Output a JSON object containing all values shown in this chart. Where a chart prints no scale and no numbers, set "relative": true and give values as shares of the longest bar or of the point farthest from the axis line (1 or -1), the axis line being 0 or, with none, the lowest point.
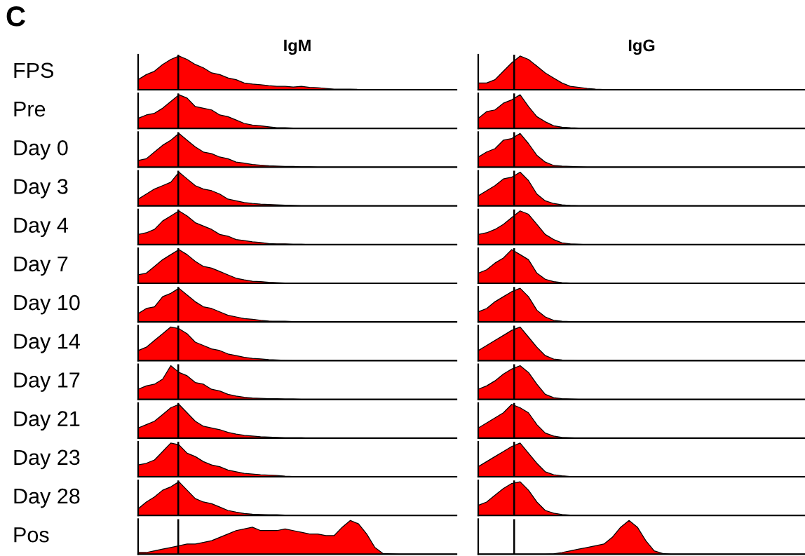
{
  "chart_data": [
    {
      "type": "area",
      "relative": true,
      "title": "IgM",
      "ylabel": "FPS",
      "annotations": [
        "C"
      ],
      "color": "#ff0000",
      "categories": [
        null,
        null,
        null,
        null,
        null,
        null,
        null,
        null,
        null,
        null,
        null,
        null,
        null,
        null,
        null,
        null,
        null,
        null,
        null,
        null,
        null,
        null,
        null,
        null,
        null,
        null,
        null,
        null,
        null,
        null,
        null,
        null,
        null,
        null,
        null,
        null,
        null,
        null,
        null,
        null
      ],
      "values": [
        0.3,
        0.45,
        0.55,
        0.75,
        0.9,
        1,
        0.9,
        0.75,
        0.65,
        0.5,
        0.45,
        0.35,
        0.3,
        0.2,
        0.17,
        0.15,
        0.12,
        0.1,
        0.1,
        0.08,
        0.1,
        0.07,
        0.06,
        0.04,
        0.02,
        0.02,
        0.02,
        0.01,
        0,
        0,
        0,
        0,
        0,
        0,
        0,
        0,
        0,
        0,
        0,
        0
      ]
    },
    {
      "type": "area",
      "relative": true,
      "title": "IgG",
      "color": "#ff0000",
      "categories": [
        null,
        null,
        null,
        null,
        null,
        null,
        null,
        null,
        null,
        null,
        null,
        null,
        null,
        null,
        null,
        null,
        null,
        null,
        null,
        null,
        null,
        null,
        null,
        null,
        null,
        null,
        null,
        null,
        null,
        null,
        null,
        null,
        null,
        null,
        null,
        null,
        null,
        null,
        null,
        null
      ],
      "values": [
        0.2,
        0.2,
        0.3,
        0.55,
        0.8,
        1,
        0.9,
        0.7,
        0.5,
        0.35,
        0.2,
        0.1,
        0.07,
        0.04,
        0.02,
        0.01,
        0,
        0,
        0,
        0,
        0,
        0,
        0,
        0,
        0,
        0,
        0,
        0,
        0,
        0,
        0,
        0,
        0,
        0,
        0,
        0,
        0,
        0,
        0,
        0
      ]
    },
    {
      "type": "area",
      "relative": true,
      "ylabel": "Pre",
      "color": "#ff0000",
      "categories": [
        null,
        null,
        null,
        null,
        null,
        null,
        null,
        null,
        null,
        null,
        null,
        null,
        null,
        null,
        null,
        null,
        null,
        null,
        null,
        null,
        null,
        null,
        null,
        null,
        null,
        null,
        null,
        null,
        null,
        null,
        null,
        null,
        null,
        null,
        null,
        null,
        null,
        null,
        null,
        null
      ],
      "values": [
        0.3,
        0.4,
        0.45,
        0.6,
        0.8,
        1,
        0.9,
        0.65,
        0.6,
        0.55,
        0.4,
        0.35,
        0.25,
        0.15,
        0.1,
        0.08,
        0.05,
        0.02,
        0.02,
        0.01,
        0.01,
        0,
        0,
        0,
        0,
        0,
        0,
        0,
        0,
        0,
        0,
        0,
        0,
        0,
        0,
        0,
        0,
        0,
        0,
        0
      ]
    },
    {
      "type": "area",
      "relative": true,
      "color": "#ff0000",
      "categories": [
        null,
        null,
        null,
        null,
        null,
        null,
        null,
        null,
        null,
        null,
        null,
        null,
        null,
        null,
        null,
        null,
        null,
        null,
        null,
        null,
        null,
        null,
        null,
        null,
        null,
        null,
        null,
        null,
        null,
        null,
        null,
        null,
        null,
        null,
        null,
        null,
        null,
        null,
        null,
        null
      ],
      "values": [
        0.3,
        0.5,
        0.55,
        0.75,
        0.85,
        1,
        0.65,
        0.35,
        0.2,
        0.08,
        0.04,
        0.02,
        0.01,
        0,
        0,
        0,
        0,
        0,
        0,
        0,
        0,
        0,
        0,
        0,
        0,
        0,
        0,
        0,
        0,
        0,
        0,
        0,
        0,
        0,
        0,
        0,
        0,
        0,
        0,
        0
      ]
    },
    {
      "type": "area",
      "relative": true,
      "ylabel": "Day 0",
      "color": "#ff0000",
      "categories": [
        null,
        null,
        null,
        null,
        null,
        null,
        null,
        null,
        null,
        null,
        null,
        null,
        null,
        null,
        null,
        null,
        null,
        null,
        null,
        null,
        null,
        null,
        null,
        null,
        null,
        null,
        null,
        null,
        null,
        null,
        null,
        null,
        null,
        null,
        null,
        null,
        null,
        null,
        null,
        null
      ],
      "values": [
        0.2,
        0.25,
        0.45,
        0.65,
        0.8,
        1,
        0.8,
        0.6,
        0.45,
        0.4,
        0.3,
        0.25,
        0.15,
        0.12,
        0.08,
        0.06,
        0.04,
        0.03,
        0.02,
        0.02,
        0.01,
        0.01,
        0,
        0,
        0,
        0,
        0,
        0,
        0,
        0,
        0,
        0,
        0,
        0,
        0,
        0,
        0,
        0,
        0,
        0
      ]
    },
    {
      "type": "area",
      "relative": true,
      "color": "#ff0000",
      "categories": [
        null,
        null,
        null,
        null,
        null,
        null,
        null,
        null,
        null,
        null,
        null,
        null,
        null,
        null,
        null,
        null,
        null,
        null,
        null,
        null,
        null,
        null,
        null,
        null,
        null,
        null,
        null,
        null,
        null,
        null,
        null,
        null,
        null,
        null,
        null,
        null,
        null,
        null,
        null,
        null
      ],
      "values": [
        0.3,
        0.45,
        0.55,
        0.8,
        0.85,
        1,
        0.7,
        0.35,
        0.15,
        0.05,
        0.03,
        0.02,
        0.01,
        0,
        0,
        0,
        0,
        0,
        0,
        0,
        0,
        0,
        0,
        0,
        0,
        0,
        0,
        0,
        0,
        0,
        0,
        0,
        0,
        0,
        0,
        0,
        0,
        0,
        0,
        0
      ]
    },
    {
      "type": "area",
      "relative": true,
      "ylabel": "Day 3",
      "color": "#ff0000",
      "categories": [
        null,
        null,
        null,
        null,
        null,
        null,
        null,
        null,
        null,
        null,
        null,
        null,
        null,
        null,
        null,
        null,
        null,
        null,
        null,
        null,
        null,
        null,
        null,
        null,
        null,
        null,
        null,
        null,
        null,
        null,
        null,
        null,
        null,
        null,
        null,
        null,
        null,
        null,
        null,
        null
      ],
      "values": [
        0.2,
        0.35,
        0.5,
        0.6,
        0.7,
        1,
        0.8,
        0.6,
        0.5,
        0.45,
        0.35,
        0.2,
        0.15,
        0.1,
        0.07,
        0.05,
        0.04,
        0.03,
        0.02,
        0.01,
        0,
        0,
        0,
        0,
        0,
        0,
        0,
        0,
        0,
        0,
        0,
        0,
        0,
        0,
        0,
        0,
        0,
        0,
        0,
        0
      ]
    },
    {
      "type": "area",
      "relative": true,
      "color": "#ff0000",
      "categories": [
        null,
        null,
        null,
        null,
        null,
        null,
        null,
        null,
        null,
        null,
        null,
        null,
        null,
        null,
        null,
        null,
        null,
        null,
        null,
        null,
        null,
        null,
        null,
        null,
        null,
        null,
        null,
        null,
        null,
        null,
        null,
        null,
        null,
        null,
        null,
        null,
        null,
        null,
        null,
        null
      ],
      "values": [
        0.3,
        0.45,
        0.6,
        0.8,
        0.85,
        1,
        0.75,
        0.35,
        0.15,
        0.07,
        0.03,
        0.01,
        0,
        0,
        0,
        0,
        0,
        0,
        0,
        0,
        0,
        0,
        0,
        0,
        0,
        0,
        0,
        0,
        0,
        0,
        0,
        0,
        0,
        0,
        0,
        0,
        0,
        0,
        0,
        0
      ]
    },
    {
      "type": "area",
      "relative": true,
      "ylabel": "Day 4",
      "color": "#ff0000",
      "categories": [
        null,
        null,
        null,
        null,
        null,
        null,
        null,
        null,
        null,
        null,
        null,
        null,
        null,
        null,
        null,
        null,
        null,
        null,
        null,
        null,
        null,
        null,
        null,
        null,
        null,
        null,
        null,
        null,
        null,
        null,
        null,
        null,
        null,
        null,
        null,
        null,
        null,
        null,
        null,
        null
      ],
      "values": [
        0.3,
        0.35,
        0.45,
        0.7,
        0.85,
        1,
        0.85,
        0.65,
        0.55,
        0.45,
        0.3,
        0.25,
        0.15,
        0.12,
        0.08,
        0.06,
        0.03,
        0.02,
        0.02,
        0.01,
        0.01,
        0,
        0,
        0,
        0,
        0,
        0,
        0,
        0,
        0,
        0,
        0,
        0,
        0,
        0,
        0,
        0,
        0,
        0,
        0
      ]
    },
    {
      "type": "area",
      "relative": true,
      "color": "#ff0000",
      "categories": [
        null,
        null,
        null,
        null,
        null,
        null,
        null,
        null,
        null,
        null,
        null,
        null,
        null,
        null,
        null,
        null,
        null,
        null,
        null,
        null,
        null,
        null,
        null,
        null,
        null,
        null,
        null,
        null,
        null,
        null,
        null,
        null,
        null,
        null,
        null,
        null,
        null,
        null,
        null,
        null
      ],
      "values": [
        0.3,
        0.35,
        0.45,
        0.6,
        0.8,
        1,
        0.9,
        0.6,
        0.3,
        0.15,
        0.05,
        0.02,
        0.01,
        0,
        0,
        0,
        0,
        0,
        0,
        0,
        0,
        0,
        0,
        0,
        0,
        0,
        0,
        0,
        0,
        0,
        0,
        0,
        0,
        0,
        0,
        0,
        0,
        0,
        0,
        0
      ]
    },
    {
      "type": "area",
      "relative": true,
      "ylabel": "Day 7",
      "color": "#ff0000",
      "categories": [
        null,
        null,
        null,
        null,
        null,
        null,
        null,
        null,
        null,
        null,
        null,
        null,
        null,
        null,
        null,
        null,
        null,
        null,
        null,
        null,
        null,
        null,
        null,
        null,
        null,
        null,
        null,
        null,
        null,
        null,
        null,
        null,
        null,
        null,
        null,
        null,
        null,
        null,
        null,
        null
      ],
      "values": [
        0.25,
        0.3,
        0.5,
        0.7,
        0.85,
        1,
        0.85,
        0.65,
        0.5,
        0.45,
        0.35,
        0.25,
        0.15,
        0.1,
        0.06,
        0.05,
        0.03,
        0.02,
        0.01,
        0,
        0,
        0,
        0,
        0,
        0,
        0,
        0,
        0,
        0,
        0,
        0,
        0,
        0,
        0,
        0,
        0,
        0,
        0,
        0,
        0
      ]
    },
    {
      "type": "area",
      "relative": true,
      "color": "#ff0000",
      "categories": [
        null,
        null,
        null,
        null,
        null,
        null,
        null,
        null,
        null,
        null,
        null,
        null,
        null,
        null,
        null,
        null,
        null,
        null,
        null,
        null,
        null,
        null,
        null,
        null,
        null,
        null,
        null,
        null,
        null,
        null,
        null,
        null,
        null,
        null,
        null,
        null,
        null,
        null,
        null,
        null
      ],
      "values": [
        0.3,
        0.4,
        0.6,
        0.75,
        1,
        0.85,
        0.7,
        0.3,
        0.12,
        0.05,
        0.02,
        0.01,
        0,
        0,
        0,
        0,
        0,
        0,
        0,
        0,
        0,
        0,
        0,
        0,
        0,
        0,
        0,
        0,
        0,
        0,
        0,
        0,
        0,
        0,
        0,
        0,
        0,
        0,
        0,
        0
      ]
    },
    {
      "type": "area",
      "relative": true,
      "ylabel": "Day 10",
      "color": "#ff0000",
      "categories": [
        null,
        null,
        null,
        null,
        null,
        null,
        null,
        null,
        null,
        null,
        null,
        null,
        null,
        null,
        null,
        null,
        null,
        null,
        null,
        null,
        null,
        null,
        null,
        null,
        null,
        null,
        null,
        null,
        null,
        null,
        null,
        null,
        null,
        null,
        null,
        null,
        null,
        null,
        null,
        null
      ],
      "values": [
        0.25,
        0.4,
        0.45,
        0.75,
        0.85,
        1,
        0.8,
        0.6,
        0.45,
        0.4,
        0.3,
        0.2,
        0.15,
        0.1,
        0.08,
        0.05,
        0.03,
        0.02,
        0.02,
        0.01,
        0,
        0,
        0,
        0,
        0,
        0,
        0,
        0,
        0,
        0,
        0,
        0,
        0,
        0,
        0,
        0,
        0,
        0,
        0,
        0
      ]
    },
    {
      "type": "area",
      "relative": true,
      "color": "#ff0000",
      "categories": [
        null,
        null,
        null,
        null,
        null,
        null,
        null,
        null,
        null,
        null,
        null,
        null,
        null,
        null,
        null,
        null,
        null,
        null,
        null,
        null,
        null,
        null,
        null,
        null,
        null,
        null,
        null,
        null,
        null,
        null,
        null,
        null,
        null,
        null,
        null,
        null,
        null,
        null,
        null,
        null
      ],
      "values": [
        0.3,
        0.4,
        0.6,
        0.75,
        0.9,
        1,
        0.75,
        0.35,
        0.15,
        0.05,
        0.02,
        0.01,
        0,
        0,
        0,
        0,
        0,
        0,
        0,
        0,
        0,
        0,
        0,
        0,
        0,
        0,
        0,
        0,
        0,
        0,
        0,
        0,
        0,
        0,
        0,
        0,
        0,
        0,
        0,
        0
      ]
    },
    {
      "type": "area",
      "relative": true,
      "ylabel": "Day 14",
      "color": "#ff0000",
      "categories": [
        null,
        null,
        null,
        null,
        null,
        null,
        null,
        null,
        null,
        null,
        null,
        null,
        null,
        null,
        null,
        null,
        null,
        null,
        null,
        null,
        null,
        null,
        null,
        null,
        null,
        null,
        null,
        null,
        null,
        null,
        null,
        null,
        null,
        null,
        null,
        null,
        null,
        null,
        null,
        null
      ],
      "values": [
        0.3,
        0.4,
        0.6,
        0.8,
        1,
        0.95,
        0.8,
        0.55,
        0.45,
        0.35,
        0.3,
        0.2,
        0.15,
        0.1,
        0.07,
        0.05,
        0.03,
        0.02,
        0.01,
        0,
        0,
        0,
        0,
        0,
        0,
        0,
        0,
        0,
        0,
        0,
        0,
        0,
        0,
        0,
        0,
        0,
        0,
        0,
        0,
        0
      ]
    },
    {
      "type": "area",
      "relative": true,
      "color": "#ff0000",
      "categories": [
        null,
        null,
        null,
        null,
        null,
        null,
        null,
        null,
        null,
        null,
        null,
        null,
        null,
        null,
        null,
        null,
        null,
        null,
        null,
        null,
        null,
        null,
        null,
        null,
        null,
        null,
        null,
        null,
        null,
        null,
        null,
        null,
        null,
        null,
        null,
        null,
        null,
        null,
        null,
        null
      ],
      "values": [
        0.3,
        0.45,
        0.6,
        0.75,
        0.9,
        1,
        0.7,
        0.4,
        0.15,
        0.05,
        0.02,
        0.01,
        0,
        0,
        0,
        0,
        0,
        0,
        0,
        0,
        0,
        0,
        0,
        0,
        0,
        0,
        0,
        0,
        0,
        0,
        0,
        0,
        0,
        0,
        0,
        0,
        0,
        0,
        0,
        0
      ]
    },
    {
      "type": "area",
      "relative": true,
      "ylabel": "Day 17",
      "color": "#ff0000",
      "categories": [
        null,
        null,
        null,
        null,
        null,
        null,
        null,
        null,
        null,
        null,
        null,
        null,
        null,
        null,
        null,
        null,
        null,
        null,
        null,
        null,
        null,
        null,
        null,
        null,
        null,
        null,
        null,
        null,
        null,
        null,
        null,
        null,
        null,
        null,
        null,
        null,
        null,
        null,
        null,
        null
      ],
      "values": [
        0.3,
        0.4,
        0.45,
        0.6,
        1,
        0.8,
        0.7,
        0.5,
        0.45,
        0.3,
        0.25,
        0.15,
        0.1,
        0.06,
        0.04,
        0.03,
        0.02,
        0.02,
        0.01,
        0.01,
        0,
        0,
        0,
        0,
        0,
        0,
        0,
        0,
        0,
        0,
        0,
        0,
        0,
        0,
        0,
        0,
        0,
        0,
        0,
        0
      ]
    },
    {
      "type": "area",
      "relative": true,
      "color": "#ff0000",
      "categories": [
        null,
        null,
        null,
        null,
        null,
        null,
        null,
        null,
        null,
        null,
        null,
        null,
        null,
        null,
        null,
        null,
        null,
        null,
        null,
        null,
        null,
        null,
        null,
        null,
        null,
        null,
        null,
        null,
        null,
        null,
        null,
        null,
        null,
        null,
        null,
        null,
        null,
        null,
        null,
        null
      ],
      "values": [
        0.3,
        0.4,
        0.55,
        0.75,
        0.9,
        1,
        0.8,
        0.45,
        0.15,
        0.05,
        0.02,
        0.01,
        0,
        0,
        0,
        0,
        0,
        0,
        0,
        0,
        0,
        0,
        0,
        0,
        0,
        0,
        0,
        0,
        0,
        0,
        0,
        0,
        0,
        0,
        0,
        0,
        0,
        0,
        0,
        0
      ]
    },
    {
      "type": "area",
      "relative": true,
      "ylabel": "Day 21",
      "color": "#ff0000",
      "categories": [
        null,
        null,
        null,
        null,
        null,
        null,
        null,
        null,
        null,
        null,
        null,
        null,
        null,
        null,
        null,
        null,
        null,
        null,
        null,
        null,
        null,
        null,
        null,
        null,
        null,
        null,
        null,
        null,
        null,
        null,
        null,
        null,
        null,
        null,
        null,
        null,
        null,
        null,
        null,
        null
      ],
      "values": [
        0.3,
        0.4,
        0.5,
        0.7,
        0.9,
        1,
        0.75,
        0.5,
        0.35,
        0.3,
        0.25,
        0.17,
        0.12,
        0.08,
        0.06,
        0.04,
        0.03,
        0.02,
        0.01,
        0.01,
        0.01,
        0,
        0,
        0,
        0,
        0,
        0,
        0,
        0,
        0,
        0,
        0,
        0,
        0,
        0,
        0,
        0,
        0,
        0,
        0
      ]
    },
    {
      "type": "area",
      "relative": true,
      "color": "#ff0000",
      "categories": [
        null,
        null,
        null,
        null,
        null,
        null,
        null,
        null,
        null,
        null,
        null,
        null,
        null,
        null,
        null,
        null,
        null,
        null,
        null,
        null,
        null,
        null,
        null,
        null,
        null,
        null,
        null,
        null,
        null,
        null,
        null,
        null,
        null,
        null,
        null,
        null,
        null,
        null,
        null,
        null
      ],
      "values": [
        0.3,
        0.45,
        0.6,
        0.75,
        1,
        0.9,
        0.75,
        0.4,
        0.15,
        0.06,
        0.02,
        0.01,
        0,
        0,
        0,
        0,
        0,
        0,
        0,
        0,
        0,
        0,
        0,
        0,
        0,
        0,
        0,
        0,
        0,
        0,
        0,
        0,
        0,
        0,
        0,
        0,
        0,
        0,
        0,
        0
      ]
    },
    {
      "type": "area",
      "relative": true,
      "ylabel": "Day 23",
      "color": "#ff0000",
      "categories": [
        null,
        null,
        null,
        null,
        null,
        null,
        null,
        null,
        null,
        null,
        null,
        null,
        null,
        null,
        null,
        null,
        null,
        null,
        null,
        null,
        null,
        null,
        null,
        null,
        null,
        null,
        null,
        null,
        null,
        null,
        null,
        null,
        null,
        null,
        null,
        null,
        null,
        null,
        null,
        null
      ],
      "values": [
        0.35,
        0.4,
        0.5,
        0.75,
        1,
        0.95,
        0.7,
        0.6,
        0.45,
        0.35,
        0.3,
        0.2,
        0.15,
        0.1,
        0.08,
        0.06,
        0.05,
        0.04,
        0.02,
        0.01,
        0.01,
        0,
        0,
        0,
        0,
        0,
        0,
        0,
        0,
        0,
        0,
        0,
        0,
        0,
        0,
        0,
        0,
        0,
        0,
        0
      ]
    },
    {
      "type": "area",
      "relative": true,
      "color": "#ff0000",
      "categories": [
        null,
        null,
        null,
        null,
        null,
        null,
        null,
        null,
        null,
        null,
        null,
        null,
        null,
        null,
        null,
        null,
        null,
        null,
        null,
        null,
        null,
        null,
        null,
        null,
        null,
        null,
        null,
        null,
        null,
        null,
        null,
        null,
        null,
        null,
        null,
        null,
        null,
        null,
        null,
        null
      ],
      "values": [
        0.3,
        0.45,
        0.6,
        0.75,
        0.9,
        1,
        0.7,
        0.4,
        0.15,
        0.06,
        0.03,
        0.01,
        0,
        0,
        0,
        0,
        0,
        0,
        0,
        0,
        0,
        0,
        0,
        0,
        0,
        0,
        0,
        0,
        0,
        0,
        0,
        0,
        0,
        0,
        0,
        0,
        0,
        0,
        0,
        0
      ]
    },
    {
      "type": "area",
      "relative": true,
      "ylabel": "Day 28",
      "color": "#ff0000",
      "categories": [
        null,
        null,
        null,
        null,
        null,
        null,
        null,
        null,
        null,
        null,
        null,
        null,
        null,
        null,
        null,
        null,
        null,
        null,
        null,
        null,
        null,
        null,
        null,
        null,
        null,
        null,
        null,
        null,
        null,
        null,
        null,
        null,
        null,
        null,
        null,
        null,
        null,
        null,
        null,
        null
      ],
      "values": [
        0.2,
        0.4,
        0.55,
        0.75,
        0.85,
        1,
        0.75,
        0.5,
        0.4,
        0.35,
        0.25,
        0.15,
        0.1,
        0.06,
        0.04,
        0.03,
        0.02,
        0.02,
        0.01,
        0.01,
        0.01,
        0,
        0,
        0,
        0,
        0,
        0,
        0,
        0,
        0,
        0,
        0,
        0,
        0,
        0,
        0,
        0,
        0,
        0,
        0
      ]
    },
    {
      "type": "area",
      "relative": true,
      "color": "#ff0000",
      "categories": [
        null,
        null,
        null,
        null,
        null,
        null,
        null,
        null,
        null,
        null,
        null,
        null,
        null,
        null,
        null,
        null,
        null,
        null,
        null,
        null,
        null,
        null,
        null,
        null,
        null,
        null,
        null,
        null,
        null,
        null,
        null,
        null,
        null,
        null,
        null,
        null,
        null,
        null,
        null,
        null
      ],
      "values": [
        0.3,
        0.4,
        0.6,
        0.8,
        0.95,
        1,
        0.75,
        0.4,
        0.15,
        0.07,
        0.03,
        0.01,
        0,
        0,
        0,
        0,
        0,
        0,
        0,
        0,
        0,
        0,
        0,
        0,
        0,
        0,
        0,
        0,
        0,
        0,
        0,
        0,
        0,
        0,
        0,
        0,
        0,
        0,
        0,
        0
      ]
    },
    {
      "type": "area",
      "relative": true,
      "ylabel": "Pos",
      "color": "#ff0000",
      "categories": [
        null,
        null,
        null,
        null,
        null,
        null,
        null,
        null,
        null,
        null,
        null,
        null,
        null,
        null,
        null,
        null,
        null,
        null,
        null,
        null,
        null,
        null,
        null,
        null,
        null,
        null,
        null,
        null,
        null,
        null,
        null,
        null,
        null,
        null,
        null,
        null,
        null,
        null,
        null,
        null
      ],
      "values": [
        0.05,
        0.05,
        0.1,
        0.15,
        0.2,
        0.25,
        0.3,
        0.3,
        0.35,
        0.4,
        0.5,
        0.6,
        0.7,
        0.75,
        0.8,
        0.7,
        0.7,
        0.7,
        0.75,
        0.7,
        0.65,
        0.6,
        0.6,
        0.55,
        0.55,
        0.8,
        1,
        0.9,
        0.6,
        0.2,
        0.02,
        0.01,
        0,
        0,
        0,
        0,
        0,
        0,
        0,
        0
      ]
    },
    {
      "type": "area",
      "relative": true,
      "color": "#ff0000",
      "categories": [
        null,
        null,
        null,
        null,
        null,
        null,
        null,
        null,
        null,
        null,
        null,
        null,
        null,
        null,
        null,
        null,
        null,
        null,
        null,
        null,
        null,
        null,
        null,
        null,
        null,
        null,
        null,
        null,
        null,
        null,
        null,
        null,
        null,
        null,
        null,
        null,
        null,
        null,
        null,
        null
      ],
      "values": [
        0,
        0,
        0,
        0,
        0,
        0,
        0,
        0,
        0,
        0.01,
        0.05,
        0.1,
        0.15,
        0.2,
        0.25,
        0.3,
        0.5,
        0.8,
        1,
        0.8,
        0.4,
        0.1,
        0.02,
        0,
        0,
        0,
        0,
        0,
        0,
        0,
        0,
        0,
        0,
        0,
        0,
        0,
        0,
        0,
        0,
        0
      ]
    }
  ]
}
